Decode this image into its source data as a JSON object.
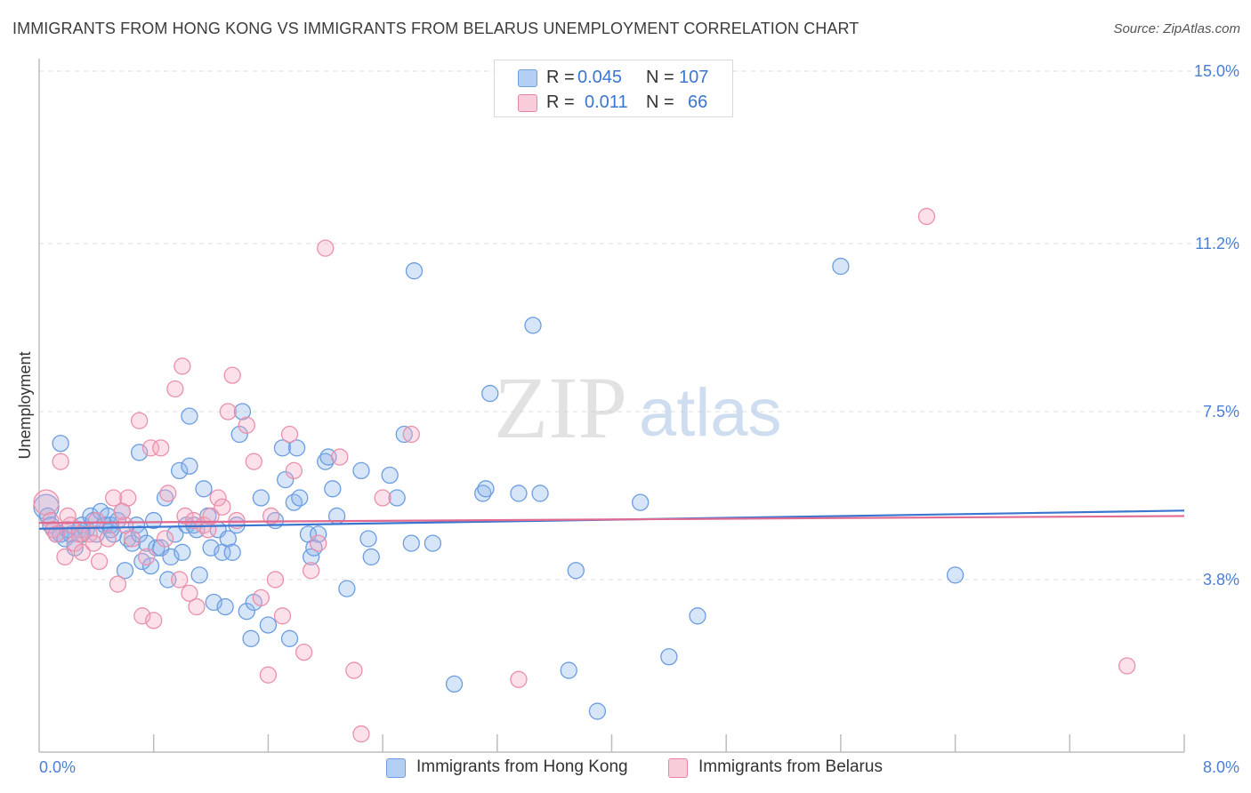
{
  "title": "IMMIGRANTS FROM HONG KONG VS IMMIGRANTS FROM BELARUS UNEMPLOYMENT CORRELATION CHART",
  "source": "Source: ZipAtlas.com",
  "watermark": {
    "zip": "ZIP",
    "atlas": "atlas"
  },
  "legend": {
    "r_label": "R =",
    "n_label": "N =",
    "rows": [
      {
        "r": "0.045",
        "n": "107",
        "color": "#a9c8f0",
        "border": "#6f9fe0"
      },
      {
        "r": "0.011",
        "n": "66",
        "color": "#f7c4d3",
        "border": "#e8849f"
      }
    ]
  },
  "colors": {
    "blue_fill": "rgba(140,180,235,0.35)",
    "blue_stroke": "#6b9de0",
    "pink_fill": "rgba(245,170,195,0.35)",
    "pink_stroke": "#e990aa",
    "blue_line": "#3a76d0",
    "pink_line": "#e06a90",
    "grid": "#dcdcdc"
  },
  "chart_data": {
    "type": "scatter",
    "title": "IMMIGRANTS FROM HONG KONG VS IMMIGRANTS FROM BELARUS UNEMPLOYMENT CORRELATION CHART",
    "xlabel": "",
    "ylabel": "Unemployment",
    "xlim": [
      0,
      8.0
    ],
    "ylim": [
      0,
      15.0
    ],
    "x_tick_labels": [
      "0.0%",
      "8.0%"
    ],
    "y_ticks": [
      3.8,
      7.5,
      11.2,
      15.0
    ],
    "y_tick_labels": [
      "3.8%",
      "7.5%",
      "11.2%",
      "15.0%"
    ],
    "grid": true,
    "legend_position": "top-center",
    "series": [
      {
        "name": "Immigrants from Hong Kong",
        "r": 0.045,
        "n": 107,
        "trend": [
          [
            0,
            4.92
          ],
          [
            8.0,
            5.32
          ]
        ],
        "points": [
          [
            0.05,
            5.4
          ],
          [
            0.06,
            5.2
          ],
          [
            0.08,
            5.0
          ],
          [
            0.1,
            4.9
          ],
          [
            0.12,
            4.8
          ],
          [
            0.15,
            4.8
          ],
          [
            0.18,
            4.7
          ],
          [
            0.2,
            4.9
          ],
          [
            0.22,
            4.8
          ],
          [
            0.25,
            4.5
          ],
          [
            0.28,
            4.9
          ],
          [
            0.3,
            5.0
          ],
          [
            0.33,
            4.9
          ],
          [
            0.36,
            5.2
          ],
          [
            0.38,
            5.1
          ],
          [
            0.4,
            4.8
          ],
          [
            0.43,
            5.3
          ],
          [
            0.46,
            5.0
          ],
          [
            0.48,
            5.2
          ],
          [
            0.5,
            5.0
          ],
          [
            0.52,
            4.8
          ],
          [
            0.55,
            5.1
          ],
          [
            0.58,
            5.3
          ],
          [
            0.6,
            4.0
          ],
          [
            0.62,
            4.7
          ],
          [
            0.65,
            4.6
          ],
          [
            0.68,
            5.0
          ],
          [
            0.7,
            4.8
          ],
          [
            0.72,
            4.2
          ],
          [
            0.75,
            4.6
          ],
          [
            0.78,
            4.1
          ],
          [
            0.8,
            5.1
          ],
          [
            0.82,
            4.5
          ],
          [
            0.85,
            4.5
          ],
          [
            0.88,
            5.6
          ],
          [
            0.9,
            3.8
          ],
          [
            0.92,
            4.3
          ],
          [
            0.95,
            4.8
          ],
          [
            0.98,
            6.2
          ],
          [
            1.0,
            4.4
          ],
          [
            1.03,
            5.0
          ],
          [
            1.05,
            6.3
          ],
          [
            1.08,
            5.0
          ],
          [
            1.1,
            4.9
          ],
          [
            1.12,
            3.9
          ],
          [
            1.15,
            5.8
          ],
          [
            1.18,
            5.2
          ],
          [
            1.2,
            4.5
          ],
          [
            1.22,
            3.3
          ],
          [
            1.25,
            4.9
          ],
          [
            1.28,
            4.4
          ],
          [
            1.3,
            3.2
          ],
          [
            1.32,
            4.7
          ],
          [
            1.35,
            4.4
          ],
          [
            1.38,
            5.0
          ],
          [
            1.4,
            7.0
          ],
          [
            1.42,
            7.5
          ],
          [
            1.45,
            3.1
          ],
          [
            1.48,
            2.5
          ],
          [
            1.5,
            3.3
          ],
          [
            1.55,
            5.6
          ],
          [
            1.6,
            2.8
          ],
          [
            1.65,
            5.1
          ],
          [
            1.7,
            6.7
          ],
          [
            1.72,
            6.0
          ],
          [
            1.75,
            2.5
          ],
          [
            1.78,
            5.5
          ],
          [
            1.8,
            6.7
          ],
          [
            1.82,
            5.6
          ],
          [
            1.88,
            4.8
          ],
          [
            1.9,
            4.3
          ],
          [
            1.92,
            4.5
          ],
          [
            1.95,
            4.8
          ],
          [
            2.0,
            6.4
          ],
          [
            2.02,
            6.5
          ],
          [
            2.05,
            5.8
          ],
          [
            2.08,
            5.2
          ],
          [
            2.15,
            3.6
          ],
          [
            2.25,
            6.2
          ],
          [
            2.3,
            4.7
          ],
          [
            2.32,
            4.3
          ],
          [
            2.45,
            6.1
          ],
          [
            2.5,
            5.6
          ],
          [
            2.55,
            7.0
          ],
          [
            2.6,
            4.6
          ],
          [
            2.62,
            10.6
          ],
          [
            2.75,
            4.6
          ],
          [
            2.9,
            1.5
          ],
          [
            3.1,
            5.7
          ],
          [
            3.12,
            5.8
          ],
          [
            3.15,
            7.9
          ],
          [
            3.35,
            5.7
          ],
          [
            3.45,
            9.4
          ],
          [
            3.5,
            5.7
          ],
          [
            3.7,
            1.8
          ],
          [
            3.75,
            4.0
          ],
          [
            3.9,
            0.9
          ],
          [
            4.2,
            5.5
          ],
          [
            4.4,
            2.1
          ],
          [
            4.6,
            3.0
          ],
          [
            5.6,
            10.7
          ],
          [
            6.4,
            3.9
          ],
          [
            0.15,
            6.8
          ],
          [
            0.3,
            4.8
          ],
          [
            0.5,
            4.9
          ],
          [
            0.7,
            6.6
          ],
          [
            1.05,
            7.4
          ]
        ]
      },
      {
        "name": "Immigrants from Belarus",
        "r": 0.011,
        "n": 66,
        "trend": [
          [
            0,
            5.05
          ],
          [
            8.0,
            5.2
          ]
        ],
        "points": [
          [
            0.05,
            5.5
          ],
          [
            0.08,
            5.1
          ],
          [
            0.1,
            4.9
          ],
          [
            0.12,
            4.8
          ],
          [
            0.15,
            6.4
          ],
          [
            0.18,
            4.3
          ],
          [
            0.22,
            5.0
          ],
          [
            0.25,
            4.6
          ],
          [
            0.28,
            4.8
          ],
          [
            0.3,
            4.4
          ],
          [
            0.35,
            4.8
          ],
          [
            0.38,
            4.6
          ],
          [
            0.42,
            4.2
          ],
          [
            0.48,
            4.7
          ],
          [
            0.52,
            5.6
          ],
          [
            0.55,
            3.7
          ],
          [
            0.6,
            5.0
          ],
          [
            0.62,
            5.6
          ],
          [
            0.65,
            4.7
          ],
          [
            0.7,
            7.3
          ],
          [
            0.72,
            3.0
          ],
          [
            0.75,
            4.3
          ],
          [
            0.78,
            6.7
          ],
          [
            0.8,
            2.9
          ],
          [
            0.85,
            6.7
          ],
          [
            0.9,
            5.7
          ],
          [
            0.95,
            8.0
          ],
          [
            0.98,
            3.8
          ],
          [
            1.0,
            8.5
          ],
          [
            1.02,
            5.2
          ],
          [
            1.05,
            3.5
          ],
          [
            1.08,
            5.1
          ],
          [
            1.1,
            3.2
          ],
          [
            1.15,
            5.0
          ],
          [
            1.18,
            4.9
          ],
          [
            1.2,
            5.2
          ],
          [
            1.25,
            5.6
          ],
          [
            1.28,
            5.4
          ],
          [
            1.32,
            7.5
          ],
          [
            1.35,
            8.3
          ],
          [
            1.38,
            5.1
          ],
          [
            1.45,
            7.2
          ],
          [
            1.5,
            6.4
          ],
          [
            1.55,
            3.4
          ],
          [
            1.6,
            1.7
          ],
          [
            1.65,
            3.8
          ],
          [
            1.7,
            3.0
          ],
          [
            1.75,
            7.0
          ],
          [
            1.78,
            6.2
          ],
          [
            1.85,
            2.2
          ],
          [
            1.9,
            4.0
          ],
          [
            1.95,
            4.6
          ],
          [
            2.0,
            11.1
          ],
          [
            2.1,
            6.5
          ],
          [
            2.2,
            1.8
          ],
          [
            2.25,
            0.4
          ],
          [
            2.4,
            5.6
          ],
          [
            2.6,
            7.0
          ],
          [
            3.35,
            1.6
          ],
          [
            6.2,
            11.8
          ],
          [
            7.6,
            1.9
          ],
          [
            0.4,
            5.1
          ],
          [
            0.58,
            5.3
          ],
          [
            0.88,
            4.7
          ],
          [
            1.62,
            5.2
          ],
          [
            0.2,
            5.2
          ]
        ]
      }
    ]
  },
  "bottom_legend": [
    {
      "label": "Immigrants from Hong Kong"
    },
    {
      "label": "Immigrants from Belarus"
    }
  ]
}
